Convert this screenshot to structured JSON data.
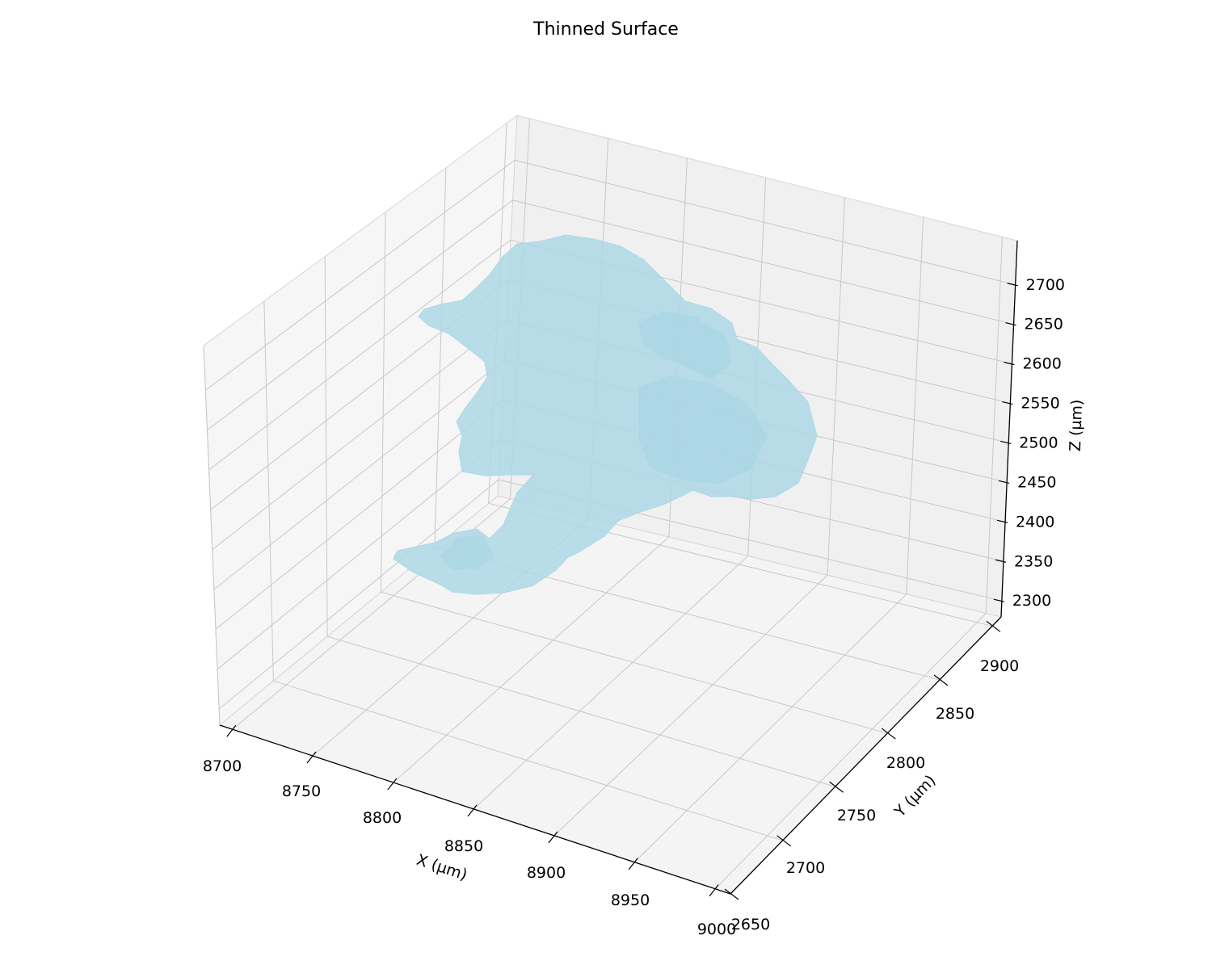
{
  "chart_data": {
    "type": "surface3d",
    "title": "Thinned Surface",
    "xlabel": "X (µm)",
    "ylabel": "Y (µm)",
    "zlabel": "Z (µm)",
    "x_ticks": [
      "8700",
      "8750",
      "8800",
      "8850",
      "8900",
      "8950",
      "9000"
    ],
    "y_ticks": [
      "2650",
      "2700",
      "2750",
      "2800",
      "2850",
      "2900"
    ],
    "z_ticks": [
      "2300",
      "2350",
      "2400",
      "2450",
      "2500",
      "2550",
      "2600",
      "2650",
      "2700"
    ],
    "xlim": [
      8700,
      9000
    ],
    "ylim": [
      2650,
      2900
    ],
    "zlim": [
      2300,
      2700
    ],
    "grid": true,
    "surface_color": "#add8e6"
  }
}
